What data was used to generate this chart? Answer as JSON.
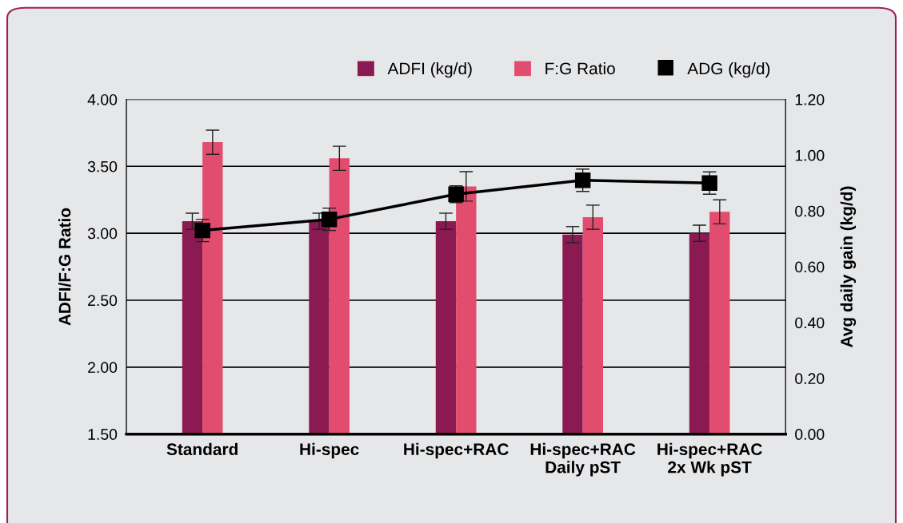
{
  "chart_data": {
    "type": "bar",
    "categories": [
      "Standard",
      "Hi-spec",
      "Hi-spec+RAC",
      "Hi-spec+RAC\nDaily pST",
      "Hi-spec+RAC\n2x Wk pST"
    ],
    "ylabel": "ADFI/F:G Ratio",
    "y2label": "Avg daily gain (kg/d)",
    "ylim": [
      1.5,
      4.0
    ],
    "yticks": [
      {
        "value": 1.5,
        "label": "1.50"
      },
      {
        "value": 2.0,
        "label": "2.00"
      },
      {
        "value": 2.5,
        "label": "2.50"
      },
      {
        "value": 3.0,
        "label": "3.00"
      },
      {
        "value": 3.5,
        "label": "3.50"
      },
      {
        "value": 4.0,
        "label": "4.00"
      }
    ],
    "y2lim": [
      0,
      1.2
    ],
    "y2ticks": [
      {
        "value": 0,
        "label": "0.00"
      },
      {
        "value": 0.2,
        "label": "0.20"
      },
      {
        "value": 0.4,
        "label": "0.40"
      },
      {
        "value": 0.6,
        "label": "0.60"
      },
      {
        "value": 0.8,
        "label": "0.80"
      },
      {
        "value": 1.0,
        "label": "1.00"
      },
      {
        "value": 1.2,
        "label": "1.20"
      }
    ],
    "grid": "y",
    "legend": "top right",
    "series": [
      {
        "name": "ADFI (kg/d)",
        "color": "#8b1a52",
        "values": [
          3.09,
          3.09,
          3.09,
          2.99,
          3.0
        ],
        "errors": [
          0.06,
          0.06,
          0.06,
          0.06,
          0.06
        ]
      },
      {
        "name": "F:G Ratio",
        "color": "#e24c6e",
        "values": [
          3.68,
          3.56,
          3.35,
          3.12,
          3.16
        ],
        "errors": [
          0.09,
          0.09,
          0.11,
          0.09,
          0.09
        ]
      },
      {
        "name": "ADG (kg/d)",
        "type": "line",
        "axis": "y2",
        "marker": "square",
        "color": "#000000",
        "values": [
          0.73,
          0.77,
          0.86,
          0.91,
          0.9
        ],
        "errors": [
          0.04,
          0.04,
          0.03,
          0.04,
          0.04
        ]
      }
    ]
  }
}
